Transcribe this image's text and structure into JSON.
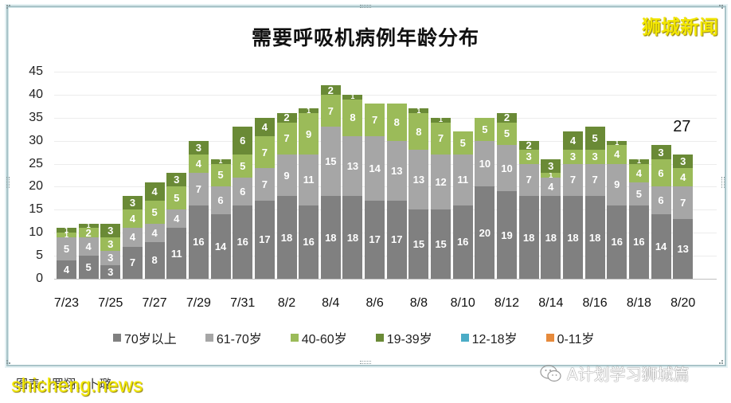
{
  "header": {
    "title": "需要呼吸机病例年龄分布",
    "brand": "狮城新闻"
  },
  "footer": {
    "caption": "图表：罗翔、卜璐",
    "watermark_site": "shicheng.news",
    "watermark_wechat": "A计划学习狮城篇"
  },
  "colors": {
    "70_plus": "#808080",
    "61_70": "#a6a6a6",
    "40_60": "#9bbb59",
    "19_39": "#6a8a36",
    "12_18": "#4bacc6",
    "0_11": "#e68a3c",
    "brand_yellow": "#f2e600"
  },
  "legend": [
    {
      "label": "70岁以上",
      "color": "#808080"
    },
    {
      "label": "61-70岁",
      "color": "#a6a6a6"
    },
    {
      "label": "40-60岁",
      "color": "#9bbb59"
    },
    {
      "label": "19-39岁",
      "color": "#6a8a36"
    },
    {
      "label": "12-18岁",
      "color": "#4bacc6"
    },
    {
      "label": "0-11岁",
      "color": "#e68a3c"
    }
  ],
  "yaxis": {
    "ticks": [
      "0",
      "5",
      "10",
      "15",
      "20",
      "25",
      "30",
      "35",
      "40",
      "45"
    ]
  },
  "xaxis": {
    "ticks": [
      "7/23",
      "7/25",
      "7/27",
      "7/29",
      "7/31",
      "8/2",
      "8/4",
      "8/6",
      "8/8",
      "8/10",
      "8/12",
      "8/14",
      "8/16",
      "8/18",
      "8/20"
    ]
  },
  "last_total_label": "27",
  "chart_data": {
    "type": "bar",
    "stacked": true,
    "title": "需要呼吸机病例年龄分布",
    "xlabel": "",
    "ylabel": "",
    "ylim": [
      0,
      45
    ],
    "grid": true,
    "legend_position": "bottom",
    "categories": [
      "7/23",
      "7/24",
      "7/25",
      "7/26",
      "7/27",
      "7/28",
      "7/29",
      "7/30",
      "7/31",
      "8/1",
      "8/2",
      "8/3",
      "8/4",
      "8/5",
      "8/6",
      "8/7",
      "8/8",
      "8/9",
      "8/10",
      "8/11",
      "8/12",
      "8/13",
      "8/14",
      "8/15",
      "8/16",
      "8/17",
      "8/18",
      "8/19",
      "8/20"
    ],
    "series": [
      {
        "name": "70岁以上",
        "values": [
          4,
          5,
          3,
          7,
          8,
          11,
          16,
          14,
          16,
          17,
          18,
          16,
          18,
          18,
          17,
          17,
          15,
          15,
          16,
          20,
          19,
          18,
          18,
          18,
          18,
          16,
          16,
          14,
          13
        ]
      },
      {
        "name": "61-70岁",
        "values": [
          5,
          4,
          3,
          4,
          4,
          4,
          7,
          6,
          6,
          7,
          9,
          11,
          15,
          13,
          14,
          13,
          13,
          12,
          11,
          10,
          10,
          7,
          4,
          7,
          7,
          9,
          5,
          6,
          7
        ]
      },
      {
        "name": "40-60岁",
        "values": [
          1,
          2,
          3,
          4,
          5,
          5,
          4,
          5,
          5,
          7,
          7,
          9,
          7,
          8,
          7,
          8,
          8,
          7,
          5,
          5,
          5,
          3,
          1,
          3,
          3,
          4,
          4,
          6,
          4
        ]
      },
      {
        "name": "19-39岁",
        "values": [
          1,
          1,
          3,
          3,
          4,
          3,
          3,
          1,
          6,
          4,
          2,
          1,
          2,
          1,
          0,
          0,
          1,
          1,
          0,
          0,
          2,
          2,
          3,
          4,
          5,
          1,
          1,
          3,
          3
        ]
      },
      {
        "name": "12-18岁",
        "values": [
          0,
          0,
          0,
          0,
          0,
          0,
          0,
          0,
          0,
          0,
          0,
          0,
          0,
          0,
          0,
          0,
          0,
          0,
          0,
          0,
          0,
          0,
          0,
          0,
          0,
          0,
          0,
          0,
          0
        ]
      },
      {
        "name": "0-11岁",
        "values": [
          0,
          0,
          0,
          0,
          0,
          0,
          0,
          0,
          0,
          0,
          0,
          0,
          0,
          0,
          0,
          0,
          0,
          0,
          0,
          0,
          0,
          0,
          0,
          0,
          0,
          0,
          0,
          0,
          0
        ]
      }
    ],
    "annotations": [
      {
        "x": "8/20",
        "text": "27"
      }
    ]
  }
}
